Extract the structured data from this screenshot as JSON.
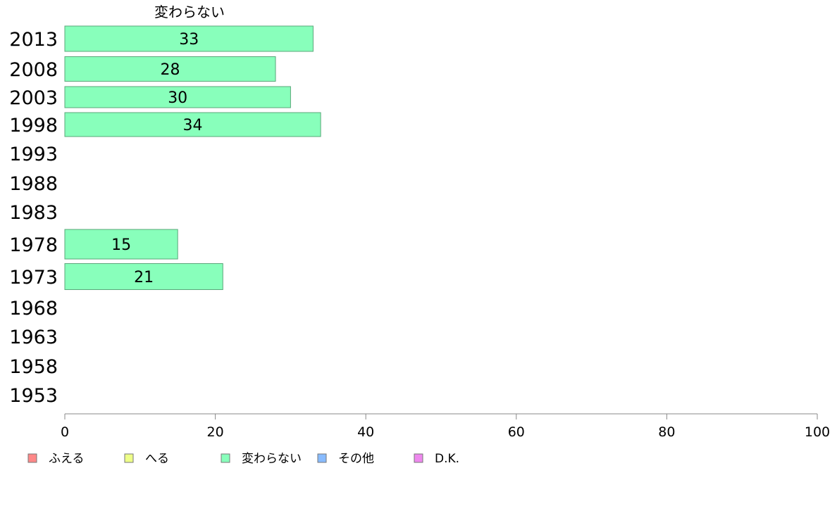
{
  "chart_data": {
    "type": "bar",
    "orientation": "horizontal",
    "title": "変わらない",
    "categories": [
      "2013",
      "2008",
      "2003",
      "1998",
      "1993",
      "1988",
      "1983",
      "1978",
      "1973",
      "1968",
      "1963",
      "1958",
      "1953"
    ],
    "values": [
      33,
      28,
      30,
      34,
      null,
      null,
      null,
      15,
      21,
      null,
      null,
      null,
      null
    ],
    "bar_labels": [
      "33",
      "28",
      "30",
      "34",
      "",
      "",
      "",
      "15",
      "21",
      "",
      "",
      "",
      ""
    ],
    "xlim": [
      0,
      100
    ],
    "xticks": [
      "0",
      "20",
      "40",
      "60",
      "80",
      "100"
    ],
    "series_color": "#88ffbb",
    "legend": {
      "placement": "bottom",
      "items": [
        {
          "label": "ふえる",
          "color": "#ff8888"
        },
        {
          "label": "へる",
          "color": "#eeff88"
        },
        {
          "label": "変わらない",
          "color": "#88ffbb"
        },
        {
          "label": "その他",
          "color": "#88bbff"
        },
        {
          "label": "D.K.",
          "color": "#ee88ee"
        }
      ]
    }
  }
}
